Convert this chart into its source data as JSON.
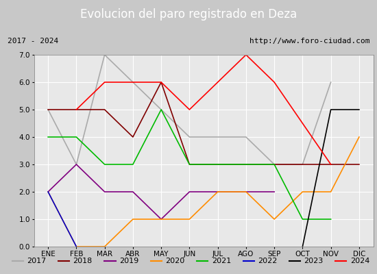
{
  "title": "Evolucion del paro registrado en Deza",
  "subtitle_left": "2017 - 2024",
  "subtitle_right": "http://www.foro-ciudad.com",
  "ylim": [
    0.0,
    7.0
  ],
  "yticks": [
    0.0,
    1.0,
    2.0,
    3.0,
    4.0,
    5.0,
    6.0,
    7.0
  ],
  "months": [
    "ENE",
    "FEB",
    "MAR",
    "ABR",
    "MAY",
    "JUN",
    "JUL",
    "AGO",
    "SEP",
    "OCT",
    "NOV",
    "DIC"
  ],
  "series": [
    {
      "label": "2017",
      "color": "#aaaaaa",
      "data": [
        5.0,
        3.0,
        7.0,
        6.0,
        5.0,
        4.0,
        4.0,
        4.0,
        3.0,
        3.0,
        6.0,
        null
      ]
    },
    {
      "label": "2018",
      "color": "#800000",
      "data": [
        5.0,
        5.0,
        5.0,
        4.0,
        6.0,
        3.0,
        3.0,
        3.0,
        3.0,
        3.0,
        3.0,
        3.0
      ]
    },
    {
      "label": "2019",
      "color": "#800080",
      "data": [
        2.0,
        3.0,
        2.0,
        2.0,
        1.0,
        2.0,
        2.0,
        2.0,
        2.0,
        null,
        null,
        null
      ]
    },
    {
      "label": "2020",
      "color": "#ff8c00",
      "data": [
        2.0,
        0.0,
        0.0,
        1.0,
        1.0,
        1.0,
        2.0,
        2.0,
        1.0,
        2.0,
        2.0,
        4.0
      ]
    },
    {
      "label": "2021",
      "color": "#00bb00",
      "data": [
        4.0,
        4.0,
        3.0,
        3.0,
        5.0,
        3.0,
        3.0,
        3.0,
        3.0,
        1.0,
        1.0,
        null
      ]
    },
    {
      "label": "2022",
      "color": "#0000cc",
      "data": [
        2.0,
        0.0,
        null,
        null,
        null,
        null,
        null,
        null,
        null,
        null,
        null,
        null
      ]
    },
    {
      "label": "2023",
      "color": "#000000",
      "data": [
        null,
        null,
        null,
        null,
        null,
        null,
        null,
        null,
        null,
        0.0,
        5.0,
        5.0
      ]
    },
    {
      "label": "2024",
      "color": "#ff0000",
      "data": [
        null,
        5.0,
        6.0,
        6.0,
        6.0,
        5.0,
        6.0,
        7.0,
        6.0,
        null,
        3.0,
        null
      ]
    }
  ],
  "title_bg_color": "#4d7cc9",
  "title_font_color": "white",
  "title_fontsize": 12,
  "subtitle_fontsize": 8,
  "plot_bg_color": "#e8e8e8",
  "fig_bg_color": "#c8c8c8",
  "legend_fontsize": 8
}
